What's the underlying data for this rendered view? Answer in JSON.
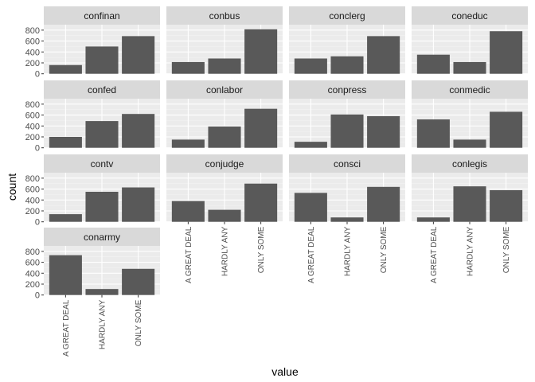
{
  "chart_data": {
    "type": "bar",
    "facet": "wrap",
    "ncol": 4,
    "xlabel": "value",
    "ylabel": "count",
    "categories": [
      "A GREAT DEAL",
      "HARDLY ANY",
      "ONLY SOME"
    ],
    "y_ticks": [
      0,
      200,
      400,
      600,
      800
    ],
    "ylim": [
      0,
      900
    ],
    "grid": true,
    "colors": {
      "bar": "#595959",
      "panel": "#ebebeb",
      "strip": "#d9d9d9",
      "grid_major": "#ffffff",
      "grid_minor": "#f2f2f2"
    },
    "panels": [
      {
        "name": "confinan",
        "values": [
          160,
          500,
          690
        ]
      },
      {
        "name": "conbus",
        "values": [
          215,
          280,
          815
        ]
      },
      {
        "name": "conclerg",
        "values": [
          280,
          320,
          690
        ]
      },
      {
        "name": "coneduc",
        "values": [
          350,
          215,
          780
        ]
      },
      {
        "name": "confed",
        "values": [
          200,
          490,
          620
        ]
      },
      {
        "name": "conlabor",
        "values": [
          150,
          390,
          715
        ]
      },
      {
        "name": "conpress",
        "values": [
          110,
          610,
          580
        ]
      },
      {
        "name": "conmedic",
        "values": [
          520,
          150,
          660
        ]
      },
      {
        "name": "contv",
        "values": [
          140,
          550,
          630
        ]
      },
      {
        "name": "conjudge",
        "values": [
          380,
          220,
          700
        ]
      },
      {
        "name": "consci",
        "values": [
          530,
          80,
          640
        ]
      },
      {
        "name": "conlegis",
        "values": [
          80,
          650,
          580
        ]
      },
      {
        "name": "conarmy",
        "values": [
          730,
          110,
          480
        ]
      }
    ]
  }
}
